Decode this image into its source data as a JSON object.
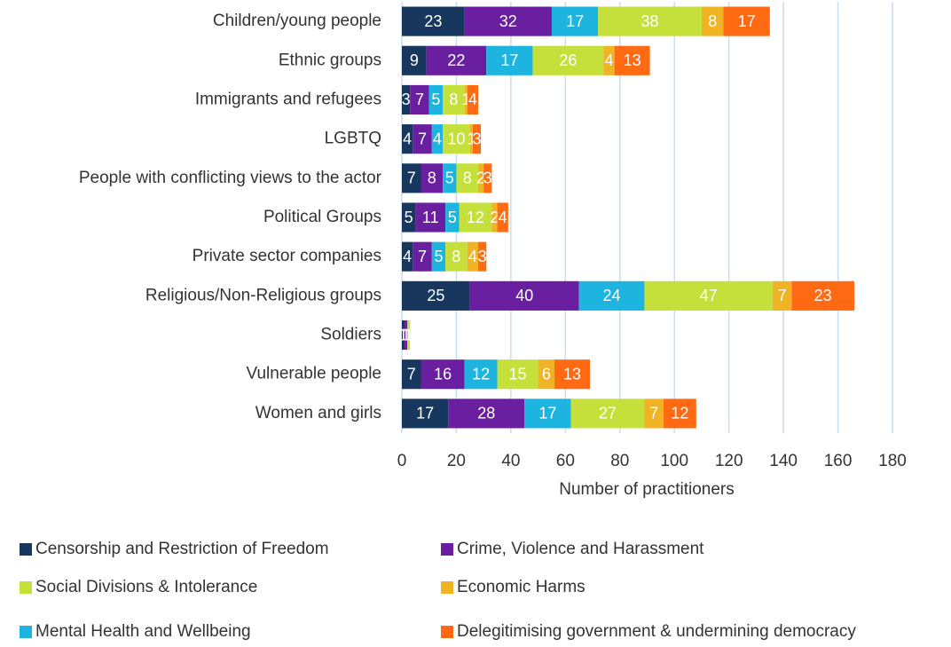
{
  "chart_data": {
    "type": "stacked-barh",
    "x_label": "Number of practitioners",
    "categories": [
      "Children/young people",
      "Ethnic groups",
      "Immigrants and refugees",
      "LGBTQ",
      "People with conflicting views to the actor",
      "Political Groups",
      "Private sector companies",
      "Religious/Non-Religious groups",
      "Soldiers",
      "Vulnerable people",
      "Women and girls"
    ],
    "series": [
      {
        "name": "Censorship and Restriction of Freedom",
        "color": "#17375e",
        "values": [
          23,
          9,
          3,
          4,
          7,
          5,
          4,
          25,
          1,
          7,
          17
        ]
      },
      {
        "name": "Crime, Violence and Harassment",
        "color": "#6a1fa0",
        "values": [
          32,
          22,
          7,
          7,
          8,
          11,
          7,
          40,
          1,
          16,
          28
        ]
      },
      {
        "name": "Mental Health and Wellbeing",
        "color": "#1eb4e0",
        "values": [
          17,
          17,
          5,
          4,
          5,
          5,
          5,
          24,
          0,
          12,
          17
        ]
      },
      {
        "name": "Social Divisions & Intolerance",
        "color": "#c5e03a",
        "values": [
          38,
          26,
          8,
          10,
          8,
          12,
          8,
          47,
          1,
          15,
          27
        ]
      },
      {
        "name": "Economic Harms",
        "color": "#f0b323",
        "values": [
          8,
          4,
          1,
          1,
          2,
          2,
          4,
          7,
          0,
          6,
          7
        ]
      },
      {
        "name": "Delegitimising government & undermining democracy",
        "color": "#ff6a13",
        "values": [
          17,
          13,
          4,
          3,
          3,
          4,
          3,
          23,
          0,
          13,
          12
        ]
      }
    ],
    "xlim": [
      0,
      180
    ],
    "xticks": [
      0,
      20,
      40,
      60,
      80,
      100,
      120,
      140,
      160,
      180
    ],
    "grid": true
  }
}
